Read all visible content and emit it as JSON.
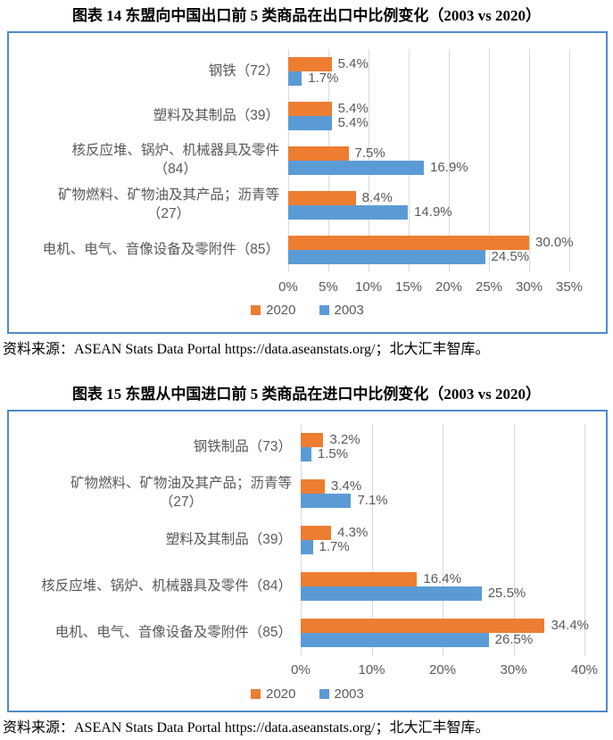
{
  "figures": [
    {
      "title": "图表 14 东盟向中国出口前 5 类商品在出口中比例变化（2003 vs 2020）",
      "source": "资料来源：ASEAN Stats Data Portal https://data.aseanstats.org/；北大汇丰智库。"
    },
    {
      "title": "图表 15 东盟从中国进口前 5 类商品在进口中比例变化（2003 vs 2020）",
      "source": "资料来源：ASEAN Stats Data Portal https://data.aseanstats.org/；北大汇丰智库。"
    }
  ],
  "chart_data": [
    {
      "type": "bar",
      "orientation": "horizontal",
      "title": "图表 14 东盟向中国出口前 5 类商品在出口中比例变化（2003 vs 2020）",
      "categories": [
        "钢铁（72）",
        "塑料及其制品（39）",
        "核反应堆、锅炉、机械器具及零件（84）",
        "矿物燃料、矿物油及其产品；沥青等（27）",
        "电机、电气、音像设备及零附件（85）"
      ],
      "category_lines": [
        [
          "钢铁（72）"
        ],
        [
          "塑料及其制品（39）"
        ],
        [
          "核反应堆、锅炉、机械器具及零件",
          "（84）"
        ],
        [
          "矿物燃料、矿物油及其产品；沥青等",
          "（27）"
        ],
        [
          "电机、电气、音像设备及零附件（85）"
        ]
      ],
      "series": [
        {
          "name": "2020",
          "color": "#ED7D31",
          "values": [
            5.4,
            5.4,
            7.5,
            8.4,
            30.0
          ],
          "labels": [
            "5.4%",
            "5.4%",
            "7.5%",
            "8.4%",
            "30.0%"
          ]
        },
        {
          "name": "2003",
          "color": "#5B9BD5",
          "values": [
            1.7,
            5.4,
            16.9,
            14.9,
            24.5
          ],
          "labels": [
            "1.7%",
            "5.4%",
            "16.9%",
            "14.9%",
            "24.5%"
          ]
        }
      ],
      "xlim": [
        0,
        35
      ],
      "x_ticks": [
        "0%",
        "5%",
        "10%",
        "15%",
        "20%",
        "25%",
        "30%",
        "35%"
      ],
      "grid": true,
      "legend_position": "bottom"
    },
    {
      "type": "bar",
      "orientation": "horizontal",
      "title": "图表 15 东盟从中国进口前 5 类商品在进口中比例变化（2003 vs 2020）",
      "categories": [
        "钢铁制品（73）",
        "矿物燃料、矿物油及其产品；沥青等（27）",
        "塑料及其制品（39）",
        "核反应堆、锅炉、机械器具及零件（84）",
        "电机、电气、音像设备及零附件（85）"
      ],
      "category_lines": [
        [
          "钢铁制品（73）"
        ],
        [
          "矿物燃料、矿物油及其产品；沥青等",
          "（27）"
        ],
        [
          "塑料及其制品（39）"
        ],
        [
          "核反应堆、锅炉、机械器具及零件（84）"
        ],
        [
          "电机、电气、音像设备及零附件（85）"
        ]
      ],
      "series": [
        {
          "name": "2020",
          "color": "#ED7D31",
          "values": [
            3.2,
            3.4,
            4.3,
            16.4,
            34.4
          ],
          "labels": [
            "3.2%",
            "3.4%",
            "4.3%",
            "16.4%",
            "34.4%"
          ]
        },
        {
          "name": "2003",
          "color": "#5B9BD5",
          "values": [
            1.5,
            7.1,
            1.7,
            25.5,
            26.5
          ],
          "labels": [
            "1.5%",
            "7.1%",
            "1.7%",
            "25.5%",
            "26.5%"
          ]
        }
      ],
      "xlim": [
        0,
        40
      ],
      "x_ticks": [
        "0%",
        "10%",
        "20%",
        "30%",
        "40%"
      ],
      "grid": true,
      "legend_position": "bottom"
    }
  ],
  "colors": {
    "bar_2020": "#ED7D31",
    "bar_2003": "#5B9BD5",
    "axis_text": "#595959",
    "gridline": "#d9d9d9",
    "chart_border": "#4f8ac9"
  }
}
